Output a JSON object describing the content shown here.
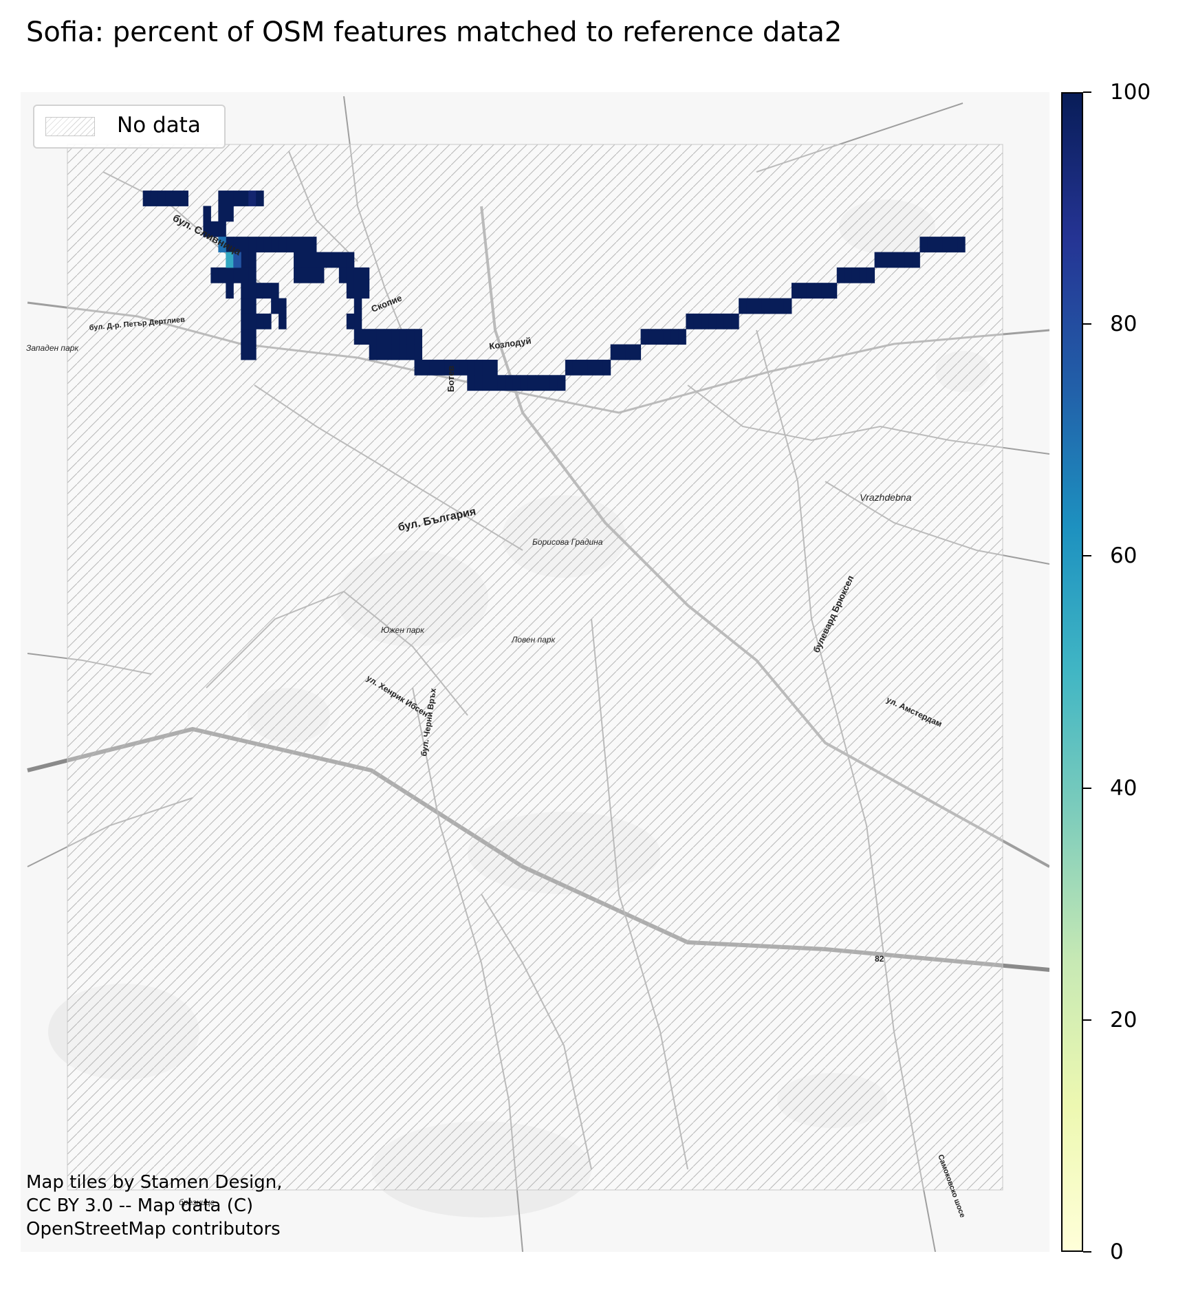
{
  "title": "Sofia: percent of OSM features matched to reference data2",
  "legend": {
    "label": "No data"
  },
  "attribution": [
    "Map tiles by Stamen Design,",
    "CC BY 3.0 -- Map data (C)",
    "OpenStreetMap contributors"
  ],
  "colorbar": {
    "colormap": "YlGnBu",
    "min": 0,
    "max": 100,
    "ticks": [
      0,
      20,
      40,
      60,
      80,
      100
    ]
  },
  "basemap_labels": [
    {
      "text": "бул. Сливница"
    },
    {
      "text": "бул. Д-р. Петър Дертлиев"
    },
    {
      "text": "Западен парк"
    },
    {
      "text": "Скопие"
    },
    {
      "text": "Козлодуй"
    },
    {
      "text": "Ботев"
    },
    {
      "text": "бул. България"
    },
    {
      "text": "Борисова Градина"
    },
    {
      "text": "Vrazhdebna"
    },
    {
      "text": "Южен парк"
    },
    {
      "text": "Ловен парк"
    },
    {
      "text": "ул. Хенрик Ибсен"
    },
    {
      "text": "бул. Черни Връх"
    },
    {
      "text": "булевард Брюксел"
    },
    {
      "text": "ул. Амстердам"
    },
    {
      "text": "82"
    },
    {
      "text": "Самоковско шосе"
    },
    {
      "text": "брезнице"
    }
  ],
  "map_data": {
    "grid": {
      "columns": 62,
      "rows": 68
    },
    "cells": [
      [
        10,
        3,
        100
      ],
      [
        11,
        3,
        100
      ],
      [
        12,
        3,
        100
      ],
      [
        13,
        3,
        100
      ],
      [
        14,
        3,
        100
      ],
      [
        15,
        3,
        100
      ],
      [
        20,
        3,
        100
      ],
      [
        21,
        3,
        100
      ],
      [
        22,
        3,
        100
      ],
      [
        23,
        3,
        100
      ],
      [
        24,
        3,
        95
      ],
      [
        25,
        3,
        100
      ],
      [
        18,
        4,
        100
      ],
      [
        18,
        5,
        100
      ],
      [
        19,
        5,
        100
      ],
      [
        20,
        5,
        100
      ],
      [
        20,
        4,
        100
      ],
      [
        21,
        4,
        100
      ],
      [
        21,
        6,
        100
      ],
      [
        22,
        6,
        100
      ],
      [
        23,
        6,
        100
      ],
      [
        24,
        6,
        100
      ],
      [
        25,
        6,
        100
      ],
      [
        26,
        6,
        100
      ],
      [
        27,
        6,
        100
      ],
      [
        28,
        6,
        100
      ],
      [
        29,
        6,
        100
      ],
      [
        30,
        6,
        100
      ],
      [
        31,
        6,
        100
      ],
      [
        32,
        6,
        100
      ],
      [
        23,
        7,
        100
      ],
      [
        23,
        8,
        100
      ],
      [
        23,
        9,
        100
      ],
      [
        23,
        10,
        100
      ],
      [
        23,
        11,
        100
      ],
      [
        23,
        12,
        100
      ],
      [
        23,
        13,
        100
      ],
      [
        24,
        7,
        100
      ],
      [
        24,
        8,
        100
      ],
      [
        24,
        9,
        100
      ],
      [
        24,
        10,
        100
      ],
      [
        24,
        11,
        100
      ],
      [
        24,
        12,
        100
      ],
      [
        24,
        13,
        100
      ],
      [
        19,
        8,
        100
      ],
      [
        20,
        8,
        100
      ],
      [
        21,
        8,
        100
      ],
      [
        22,
        8,
        100
      ],
      [
        25,
        9,
        100
      ],
      [
        26,
        9,
        100
      ],
      [
        27,
        9,
        100
      ],
      [
        27,
        10,
        100
      ],
      [
        28,
        10,
        100
      ],
      [
        28,
        11,
        100
      ],
      [
        25,
        11,
        100
      ],
      [
        26,
        11,
        100
      ],
      [
        21,
        7,
        55
      ],
      [
        22,
        7,
        78
      ],
      [
        20,
        6,
        70
      ],
      [
        21,
        9,
        100
      ],
      [
        30,
        7,
        100
      ],
      [
        31,
        7,
        100
      ],
      [
        32,
        7,
        100
      ],
      [
        33,
        7,
        100
      ],
      [
        34,
        7,
        100
      ],
      [
        35,
        7,
        100
      ],
      [
        36,
        7,
        100
      ],
      [
        37,
        7,
        100
      ],
      [
        30,
        8,
        100
      ],
      [
        31,
        8,
        100
      ],
      [
        32,
        8,
        100
      ],
      [
        33,
        8,
        100
      ],
      [
        36,
        8,
        100
      ],
      [
        37,
        8,
        100
      ],
      [
        38,
        8,
        100
      ],
      [
        39,
        8,
        100
      ],
      [
        37,
        9,
        100
      ],
      [
        38,
        9,
        100
      ],
      [
        39,
        9,
        100
      ],
      [
        38,
        10,
        100
      ],
      [
        38,
        11,
        100
      ],
      [
        37,
        11,
        100
      ],
      [
        38,
        12,
        100
      ],
      [
        39,
        12,
        100
      ],
      [
        40,
        12,
        100
      ],
      [
        41,
        12,
        100
      ],
      [
        42,
        12,
        100
      ],
      [
        43,
        12,
        100
      ],
      [
        44,
        12,
        100
      ],
      [
        45,
        12,
        100
      ],
      [
        46,
        12,
        100
      ],
      [
        40,
        13,
        100
      ],
      [
        41,
        13,
        100
      ],
      [
        42,
        13,
        100
      ],
      [
        43,
        13,
        100
      ],
      [
        44,
        13,
        100
      ],
      [
        45,
        13,
        100
      ],
      [
        46,
        13,
        100
      ],
      [
        46,
        14,
        100
      ],
      [
        47,
        14,
        100
      ],
      [
        48,
        14,
        100
      ],
      [
        49,
        14,
        100
      ],
      [
        50,
        14,
        100
      ],
      [
        51,
        14,
        100
      ],
      [
        52,
        14,
        100
      ],
      [
        53,
        14,
        100
      ],
      [
        54,
        14,
        100
      ],
      [
        55,
        14,
        100
      ],
      [
        56,
        14,
        100
      ],
      [
        53,
        15,
        100
      ],
      [
        54,
        15,
        100
      ],
      [
        55,
        15,
        100
      ],
      [
        56,
        15,
        100
      ],
      [
        57,
        15,
        100
      ],
      [
        58,
        15,
        100
      ],
      [
        59,
        15,
        100
      ],
      [
        60,
        15,
        100
      ],
      [
        61,
        15,
        100
      ],
      [
        62,
        15,
        100
      ],
      [
        63,
        15,
        100
      ],
      [
        64,
        15,
        100
      ],
      [
        65,
        15,
        100
      ],
      [
        66,
        14,
        100
      ],
      [
        67,
        14,
        100
      ],
      [
        68,
        14,
        100
      ],
      [
        69,
        14,
        100
      ],
      [
        70,
        14,
        100
      ],
      [
        71,
        14,
        100
      ],
      [
        72,
        13,
        100
      ],
      [
        73,
        13,
        100
      ],
      [
        74,
        13,
        100
      ],
      [
        75,
        13,
        100
      ],
      [
        76,
        12,
        100
      ],
      [
        77,
        12,
        100
      ],
      [
        78,
        12,
        100
      ],
      [
        79,
        12,
        100
      ],
      [
        80,
        12,
        100
      ],
      [
        81,
        12,
        100
      ],
      [
        82,
        11,
        100
      ],
      [
        83,
        11,
        100
      ],
      [
        84,
        11,
        100
      ],
      [
        85,
        11,
        100
      ],
      [
        86,
        11,
        100
      ],
      [
        87,
        11,
        100
      ],
      [
        88,
        11,
        100
      ],
      [
        89,
        10,
        100
      ],
      [
        90,
        10,
        100
      ],
      [
        91,
        10,
        100
      ],
      [
        92,
        10,
        100
      ],
      [
        93,
        10,
        100
      ],
      [
        94,
        10,
        100
      ],
      [
        95,
        10,
        100
      ],
      [
        96,
        9,
        100
      ],
      [
        97,
        9,
        100
      ],
      [
        98,
        9,
        100
      ],
      [
        99,
        9,
        100
      ],
      [
        100,
        9,
        100
      ],
      [
        101,
        9,
        100
      ],
      [
        102,
        8,
        100
      ],
      [
        103,
        8,
        100
      ],
      [
        104,
        8,
        100
      ],
      [
        105,
        8,
        100
      ],
      [
        106,
        8,
        100
      ],
      [
        107,
        7,
        100
      ],
      [
        108,
        7,
        100
      ],
      [
        109,
        7,
        100
      ],
      [
        110,
        7,
        100
      ],
      [
        111,
        7,
        100
      ],
      [
        112,
        7,
        100
      ],
      [
        113,
        6,
        100
      ],
      [
        114,
        6,
        100
      ],
      [
        115,
        6,
        100
      ],
      [
        116,
        6,
        100
      ],
      [
        117,
        6,
        100
      ],
      [
        118,
        6,
        100
      ]
    ]
  }
}
